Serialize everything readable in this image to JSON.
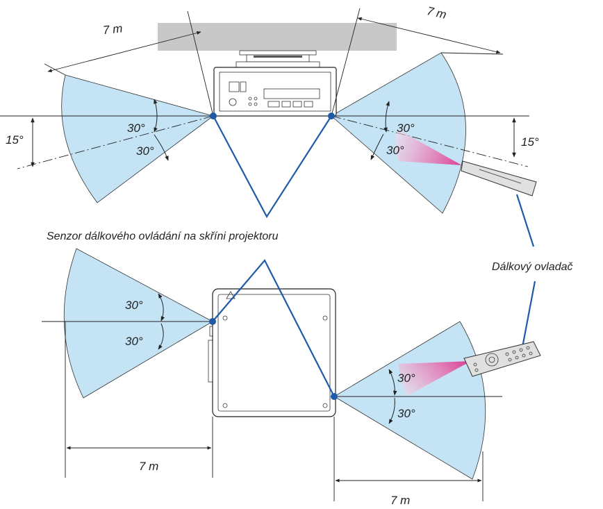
{
  "labels": {
    "distance_top_left": "7 m",
    "distance_top_right": "7 m",
    "distance_bottom_left": "7 m",
    "distance_bottom_right": "7 m",
    "angle_30": "30°",
    "angle_15": "15°",
    "caption_sensor": "Senzor dálkového ovládání na skříni projektoru",
    "caption_remote": "Dálkový ovladač"
  },
  "colors": {
    "cone_fill": "#c4e3f5",
    "beam_pink": "#e8a0c4",
    "connector_blue": "#1e5aa8",
    "ceiling_gray": "#c8c8c8"
  }
}
